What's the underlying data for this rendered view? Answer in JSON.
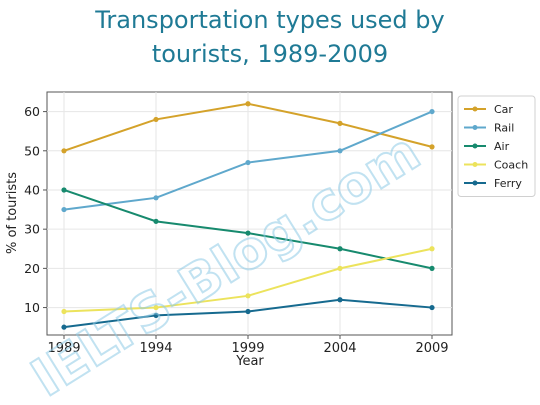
{
  "chart_data": {
    "type": "line",
    "title_line1": "Transportation types used by",
    "title_line2": "tourists, 1989-2009",
    "xlabel": "Year",
    "ylabel": "% of tourists",
    "x": [
      1989,
      1994,
      1999,
      2004,
      2009
    ],
    "xticks": [
      "1989",
      "1994",
      "1999",
      "2004",
      "2009"
    ],
    "yticks": [
      "10",
      "20",
      "30",
      "40",
      "50",
      "60"
    ],
    "ylim": [
      3,
      65
    ],
    "grid": true,
    "legend_position": "top-right",
    "series": [
      {
        "name": "Car",
        "values": [
          50,
          58,
          62,
          57,
          51
        ],
        "color": "#d4a22a"
      },
      {
        "name": "Rail",
        "values": [
          35,
          38,
          47,
          50,
          60
        ],
        "color": "#5fa8cc"
      },
      {
        "name": "Air",
        "values": [
          40,
          32,
          29,
          25,
          20
        ],
        "color": "#178a6e"
      },
      {
        "name": "Coach",
        "values": [
          9,
          10,
          13,
          20,
          25
        ],
        "color": "#ece35c"
      },
      {
        "name": "Ferry",
        "values": [
          5,
          8,
          9,
          12,
          10
        ],
        "color": "#166a8f"
      }
    ]
  },
  "watermark": "IELTS-Blog.com"
}
